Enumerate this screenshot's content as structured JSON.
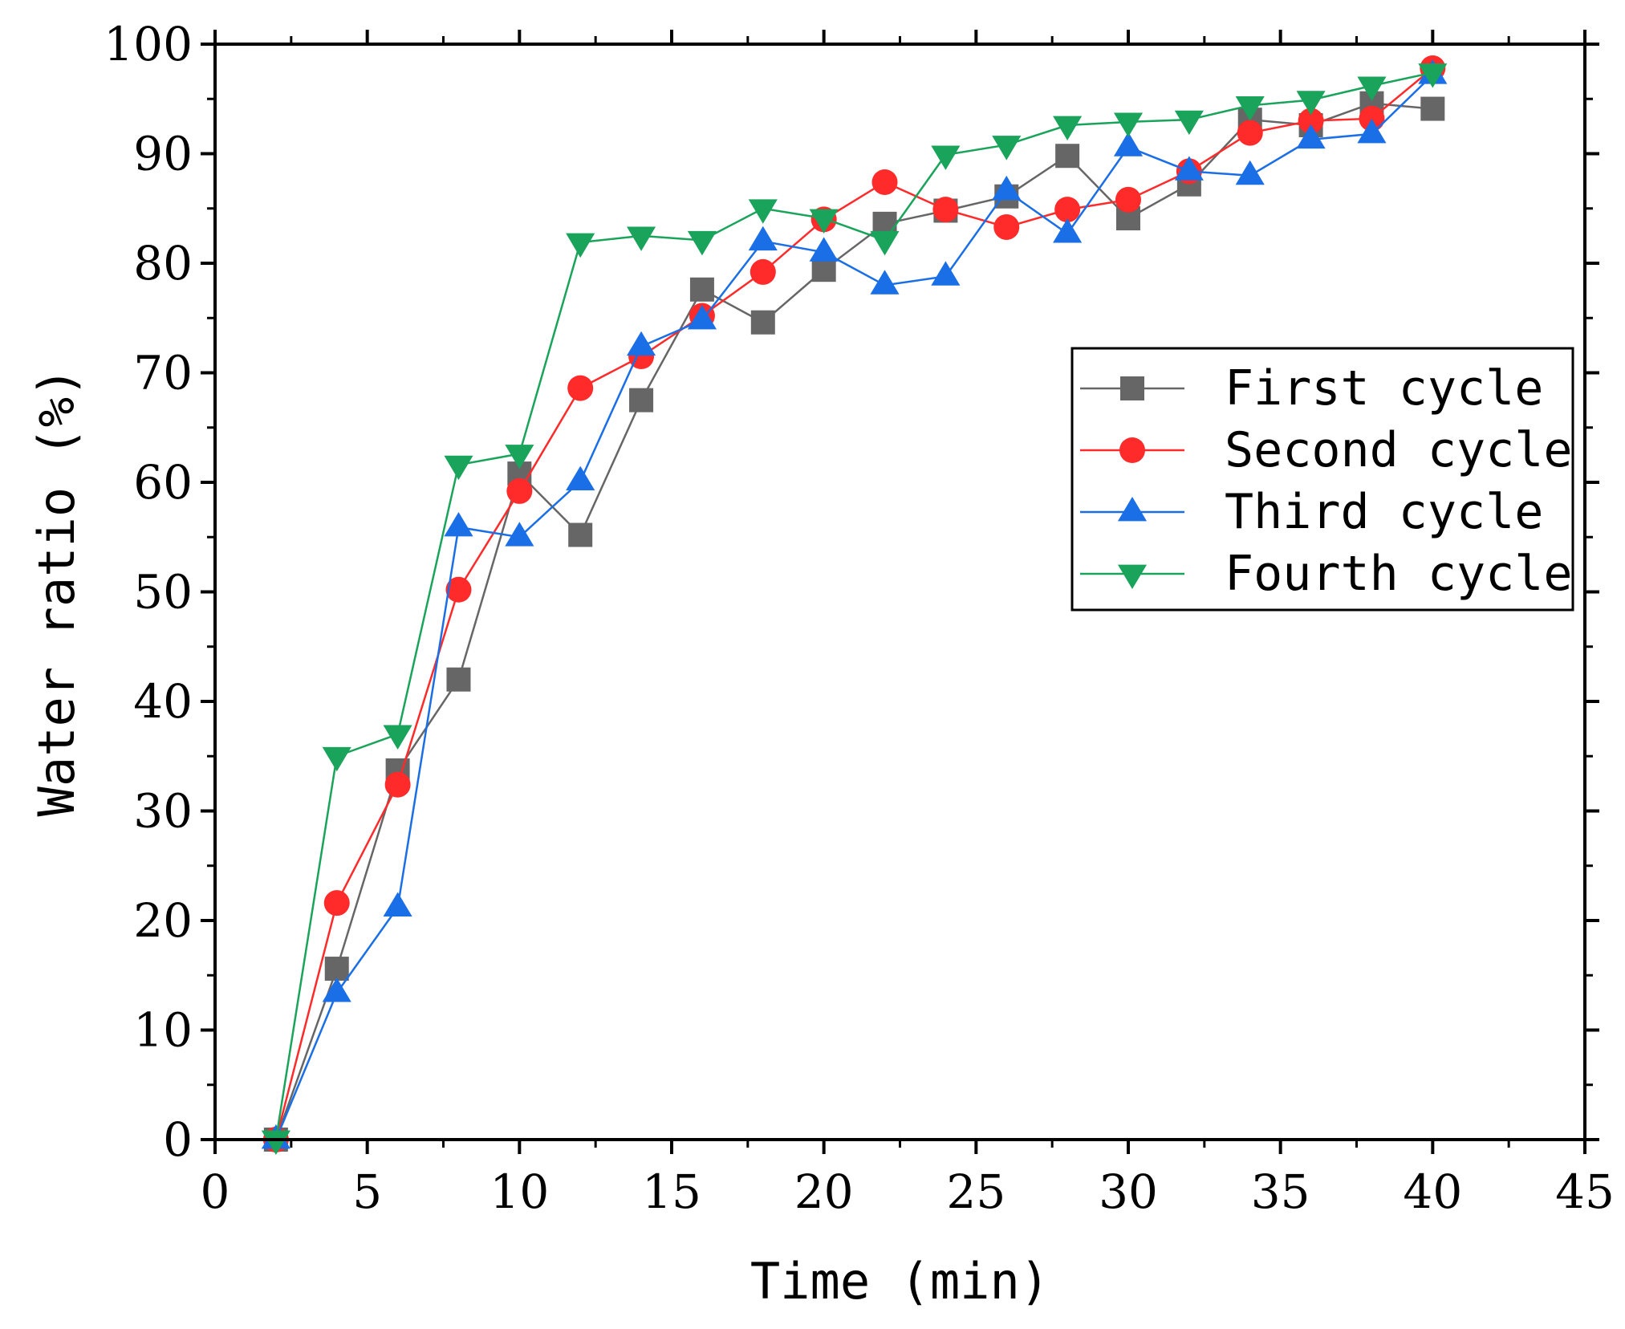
{
  "chart_data": {
    "type": "line",
    "title": "",
    "xlabel": "Time (min)",
    "ylabel": "Water ratio (%)",
    "xlim": [
      0,
      45
    ],
    "ylim": [
      0,
      100
    ],
    "xticks": [
      0,
      5,
      10,
      15,
      20,
      25,
      30,
      35,
      40,
      45
    ],
    "yticks": [
      0,
      10,
      20,
      30,
      40,
      50,
      60,
      70,
      80,
      90,
      100
    ],
    "grid": false,
    "legend_position": "right-middle",
    "x": [
      2,
      4,
      6,
      8,
      10,
      12,
      14,
      16,
      18,
      20,
      22,
      24,
      26,
      28,
      30,
      32,
      34,
      36,
      38,
      40
    ],
    "series": [
      {
        "name": "First cycle",
        "color": "#666666",
        "marker": "square",
        "values": [
          0,
          15.6,
          33.7,
          42.0,
          60.8,
          55.2,
          67.5,
          77.6,
          74.6,
          79.4,
          83.6,
          84.8,
          86.1,
          89.8,
          84.1,
          87.2,
          93.1,
          92.6,
          94.6,
          94.1
        ]
      },
      {
        "name": "Second cycle",
        "color": "#ff2a2a",
        "marker": "circle",
        "values": [
          0,
          21.6,
          32.4,
          50.2,
          59.2,
          68.6,
          71.5,
          75.2,
          79.2,
          84.0,
          87.4,
          84.9,
          83.3,
          84.9,
          85.8,
          88.4,
          91.9,
          93.0,
          93.2,
          97.8
        ]
      },
      {
        "name": "Third cycle",
        "color": "#1a6ee6",
        "marker": "triangle-up",
        "values": [
          0,
          13.4,
          21.2,
          55.9,
          55.0,
          60.1,
          72.4,
          74.8,
          82.0,
          81.0,
          78.0,
          78.8,
          86.6,
          82.7,
          90.6,
          88.4,
          88.0,
          91.3,
          91.8,
          97.2
        ]
      },
      {
        "name": "Fourth cycle",
        "color": "#1aa35a",
        "marker": "triangle-down",
        "values": [
          0,
          35.0,
          37.0,
          61.6,
          62.6,
          81.9,
          82.5,
          82.1,
          85.0,
          84.1,
          82.1,
          89.9,
          90.8,
          92.6,
          92.9,
          93.1,
          94.4,
          94.9,
          96.2,
          97.4
        ]
      }
    ]
  }
}
